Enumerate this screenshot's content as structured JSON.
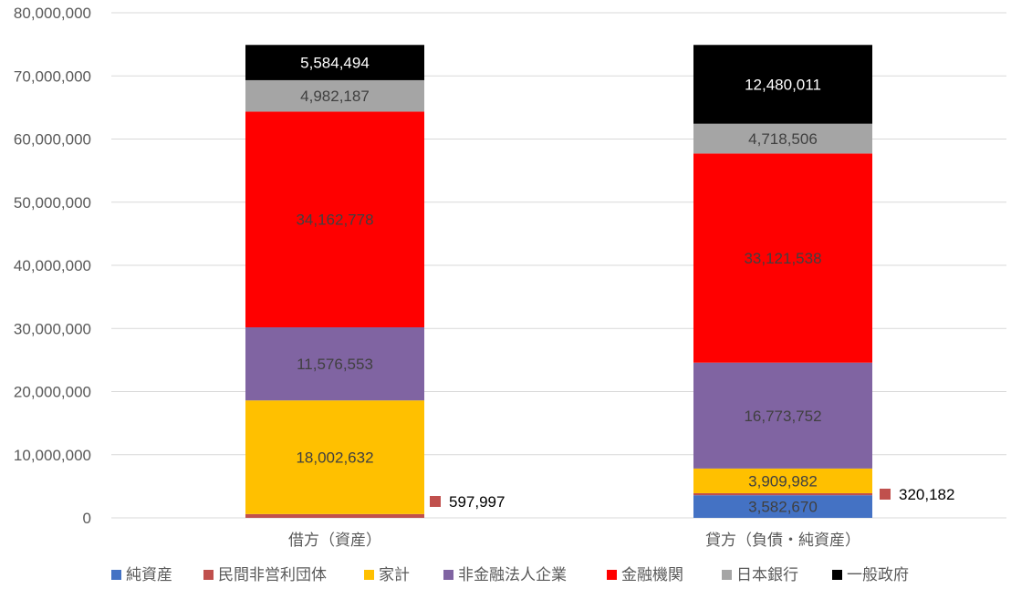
{
  "chart_data": {
    "type": "bar",
    "stacked": true,
    "categories": [
      "借方（資産）",
      "貸方（負債・純資産）"
    ],
    "ylim": [
      0,
      80000000
    ],
    "yticks": [
      0,
      10000000,
      20000000,
      30000000,
      40000000,
      50000000,
      60000000,
      70000000,
      80000000
    ],
    "ytick_labels": [
      "0",
      "10,000,000",
      "20,000,000",
      "30,000,000",
      "40,000,000",
      "50,000,000",
      "60,000,000",
      "70,000,000",
      "80,000,000"
    ],
    "grid": true,
    "legend_position": "bottom",
    "series": [
      {
        "name": "純資産",
        "color": "#4472C4",
        "values": [
          0,
          3582670
        ],
        "labels": [
          "",
          "3,582,670"
        ],
        "label_color": "#404040"
      },
      {
        "name": "民間非営利団体",
        "color": "#C0504D",
        "values": [
          597997,
          320182
        ],
        "labels": [
          "597,997",
          "320,182"
        ],
        "label_color": "#000000",
        "label_outside": true
      },
      {
        "name": "家計",
        "color": "#FFC000",
        "values": [
          18002632,
          3909982
        ],
        "labels": [
          "18,002,632",
          "3,909,982"
        ],
        "label_color": "#404040"
      },
      {
        "name": "非金融法人企業",
        "color": "#8064A2",
        "values": [
          11576553,
          16773752
        ],
        "labels": [
          "11,576,553",
          "16,773,752"
        ],
        "label_color": "#404040"
      },
      {
        "name": "金融機関",
        "color": "#FF0000",
        "values": [
          34162778,
          33121538
        ],
        "labels": [
          "34,162,778",
          "33,121,538"
        ],
        "label_color": "#404040"
      },
      {
        "name": "日本銀行",
        "color": "#A5A5A5",
        "values": [
          4982187,
          4718506
        ],
        "labels": [
          "4,982,187",
          "4,718,506"
        ],
        "label_color": "#404040"
      },
      {
        "name": "一般政府",
        "color": "#000000",
        "values": [
          5584494,
          12480011
        ],
        "labels": [
          "5,584,494",
          "12,480,011"
        ],
        "label_color": "#FFFFFF"
      }
    ]
  }
}
